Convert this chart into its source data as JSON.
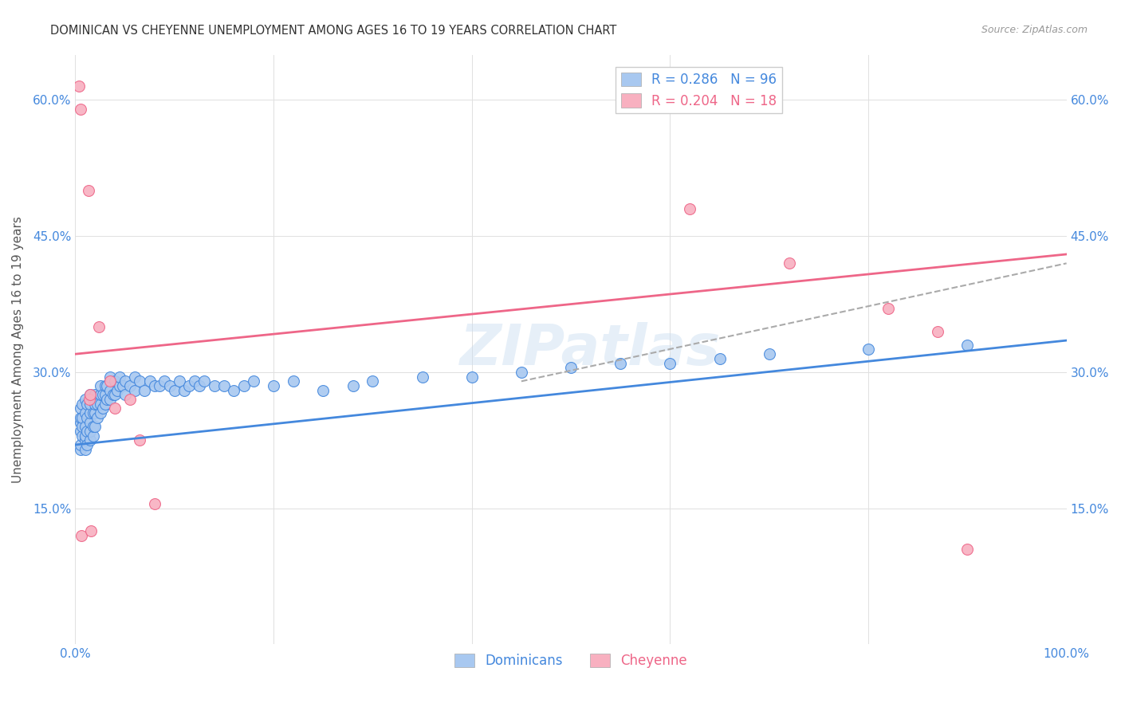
{
  "title": "DOMINICAN VS CHEYENNE UNEMPLOYMENT AMONG AGES 16 TO 19 YEARS CORRELATION CHART",
  "source": "Source: ZipAtlas.com",
  "ylabel": "Unemployment Among Ages 16 to 19 years",
  "xlim": [
    0.0,
    1.0
  ],
  "ylim": [
    0.0,
    0.65
  ],
  "x_ticks": [
    0.0,
    0.2,
    0.4,
    0.6,
    0.8,
    1.0
  ],
  "x_tick_labels": [
    "0.0%",
    "",
    "",
    "",
    "",
    "100.0%"
  ],
  "y_ticks": [
    0.0,
    0.15,
    0.3,
    0.45,
    0.6
  ],
  "y_tick_labels": [
    "",
    "15.0%",
    "30.0%",
    "45.0%",
    "60.0%"
  ],
  "dominican_color": "#a8c8f0",
  "cheyenne_color": "#f8b0c0",
  "dominican_line_color": "#4488dd",
  "cheyenne_line_color": "#ee6688",
  "background_color": "#ffffff",
  "grid_color": "#e0e0e0",
  "R_dominican": 0.286,
  "N_dominican": 96,
  "R_cheyenne": 0.204,
  "N_cheyenne": 18,
  "watermark": "ZIPatlas",
  "dominican_x": [
    0.005,
    0.005,
    0.005,
    0.005,
    0.005,
    0.005,
    0.007,
    0.007,
    0.007,
    0.007,
    0.01,
    0.01,
    0.01,
    0.01,
    0.01,
    0.01,
    0.012,
    0.012,
    0.012,
    0.012,
    0.015,
    0.015,
    0.015,
    0.015,
    0.015,
    0.015,
    0.018,
    0.018,
    0.018,
    0.018,
    0.02,
    0.02,
    0.02,
    0.02,
    0.022,
    0.022,
    0.025,
    0.025,
    0.025,
    0.025,
    0.028,
    0.028,
    0.03,
    0.03,
    0.03,
    0.032,
    0.032,
    0.035,
    0.035,
    0.035,
    0.038,
    0.04,
    0.04,
    0.042,
    0.045,
    0.045,
    0.048,
    0.05,
    0.05,
    0.055,
    0.06,
    0.06,
    0.065,
    0.07,
    0.075,
    0.08,
    0.085,
    0.09,
    0.095,
    0.1,
    0.105,
    0.11,
    0.115,
    0.12,
    0.125,
    0.13,
    0.14,
    0.15,
    0.16,
    0.17,
    0.18,
    0.2,
    0.22,
    0.25,
    0.28,
    0.3,
    0.35,
    0.4,
    0.45,
    0.5,
    0.55,
    0.6,
    0.65,
    0.7,
    0.8,
    0.9
  ],
  "dominican_y": [
    0.215,
    0.22,
    0.235,
    0.245,
    0.25,
    0.26,
    0.23,
    0.24,
    0.25,
    0.265,
    0.215,
    0.225,
    0.23,
    0.24,
    0.255,
    0.27,
    0.22,
    0.235,
    0.25,
    0.265,
    0.225,
    0.235,
    0.245,
    0.255,
    0.265,
    0.275,
    0.23,
    0.24,
    0.255,
    0.27,
    0.24,
    0.255,
    0.265,
    0.275,
    0.25,
    0.265,
    0.255,
    0.265,
    0.275,
    0.285,
    0.26,
    0.275,
    0.265,
    0.275,
    0.285,
    0.27,
    0.285,
    0.27,
    0.28,
    0.295,
    0.275,
    0.275,
    0.29,
    0.28,
    0.285,
    0.295,
    0.285,
    0.275,
    0.29,
    0.285,
    0.28,
    0.295,
    0.29,
    0.28,
    0.29,
    0.285,
    0.285,
    0.29,
    0.285,
    0.28,
    0.29,
    0.28,
    0.285,
    0.29,
    0.285,
    0.29,
    0.285,
    0.285,
    0.28,
    0.285,
    0.29,
    0.285,
    0.29,
    0.28,
    0.285,
    0.29,
    0.295,
    0.295,
    0.3,
    0.305,
    0.31,
    0.31,
    0.315,
    0.32,
    0.325,
    0.33
  ],
  "cheyenne_x": [
    0.004,
    0.005,
    0.006,
    0.013,
    0.014,
    0.015,
    0.016,
    0.024,
    0.035,
    0.04,
    0.055,
    0.065,
    0.08,
    0.62,
    0.72,
    0.82,
    0.87,
    0.9
  ],
  "cheyenne_y": [
    0.615,
    0.59,
    0.12,
    0.5,
    0.27,
    0.275,
    0.125,
    0.35,
    0.29,
    0.26,
    0.27,
    0.225,
    0.155,
    0.48,
    0.42,
    0.37,
    0.345,
    0.105
  ],
  "blue_line_x0": 0.0,
  "blue_line_y0": 0.22,
  "blue_line_x1": 1.0,
  "blue_line_y1": 0.335,
  "pink_line_x0": 0.0,
  "pink_line_y0": 0.32,
  "pink_line_x1": 1.0,
  "pink_line_y1": 0.43,
  "dash_line_x0": 0.45,
  "dash_line_y0": 0.29,
  "dash_line_x1": 1.0,
  "dash_line_y1": 0.42
}
